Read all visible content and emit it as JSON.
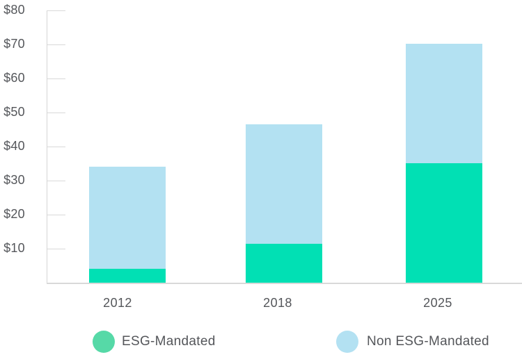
{
  "chart_data": {
    "type": "bar",
    "stacked": true,
    "title": "",
    "categories": [
      "2012",
      "2018",
      "2025"
    ],
    "series": [
      {
        "name": "ESG-Mandated",
        "values": [
          4,
          11.5,
          35
        ],
        "color": "#01E0B4",
        "legend_color": "#56D9A7"
      },
      {
        "name": "Non ESG-Mandated",
        "values": [
          30,
          35,
          35
        ],
        "color": "#B3E1F2",
        "legend_color": "#B3E1F2"
      }
    ],
    "totals": [
      34,
      46.5,
      70
    ],
    "y_ticks": [
      {
        "label": "$80",
        "value": 80
      },
      {
        "label": "$70",
        "value": 70
      },
      {
        "label": "$60",
        "value": 60
      },
      {
        "label": "$50",
        "value": 50
      },
      {
        "label": "$40",
        "value": 40
      },
      {
        "label": "$30",
        "value": 30
      },
      {
        "label": "$20",
        "value": 20
      },
      {
        "label": "$10",
        "value": 10
      }
    ],
    "ylim": [
      0,
      80
    ],
    "grid": false,
    "legend_position": "bottom"
  },
  "colors": {
    "esg_bar": "#01E0B4",
    "esg_legend": "#56D9A7",
    "non_esg": "#B3E1F2",
    "axis": "#D5D5D5",
    "text": "#54565A",
    "background": "#FFFFFF"
  }
}
